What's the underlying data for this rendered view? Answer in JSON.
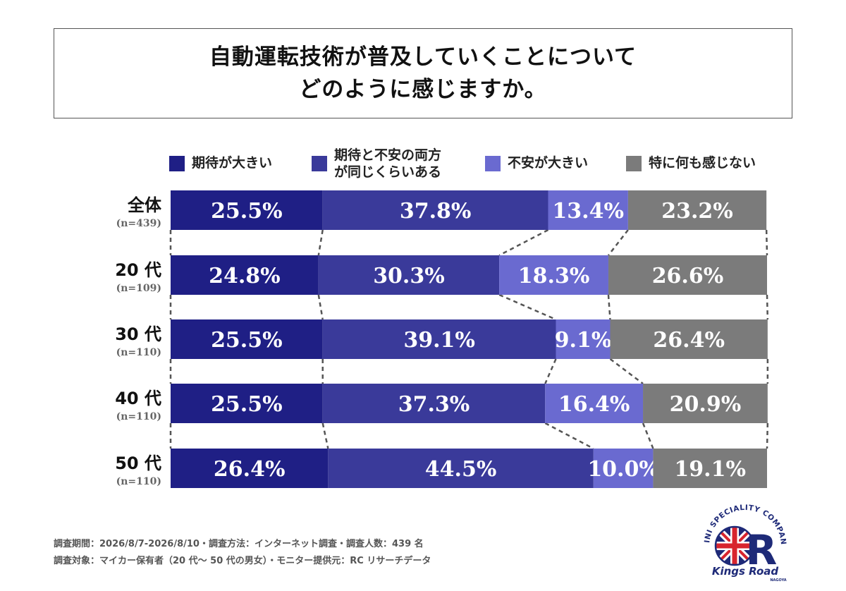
{
  "title": {
    "line1": "自動運転技術が普及していくことについて",
    "line2": "どのように感じますか。"
  },
  "legend": [
    {
      "label": "期待が大きい",
      "color": "#1f1f85"
    },
    {
      "label": "期待と不安の両方\nが同じくらいある",
      "color": "#3a3a9a"
    },
    {
      "label": "不安が大きい",
      "color": "#6a6ad0"
    },
    {
      "label": "特に何も感じない",
      "color": "#7b7b7b"
    }
  ],
  "chart_data": {
    "type": "bar",
    "orientation": "horizontal",
    "stacked": "100%",
    "categories": [
      "全体",
      "20代",
      "30代",
      "40代",
      "50代"
    ],
    "category_labels": [
      "全体",
      "20 代",
      "30 代",
      "40 代",
      "50 代"
    ],
    "sample_sizes": [
      "(n=439)",
      "(n=109)",
      "(n=110)",
      "(n=110)",
      "(n=110)"
    ],
    "series": [
      {
        "name": "期待が大きい",
        "values": [
          25.5,
          24.8,
          25.5,
          25.5,
          26.4
        ],
        "labels": [
          "25.5%",
          "24.8%",
          "25.5%",
          "25.5%",
          "26.4%"
        ]
      },
      {
        "name": "期待と不安の両方が同じくらいある",
        "values": [
          37.8,
          30.3,
          39.1,
          37.3,
          44.5
        ],
        "labels": [
          "37.8%",
          "30.3%",
          "39.1%",
          "37.3%",
          "44.5%"
        ]
      },
      {
        "name": "不安が大きい",
        "values": [
          13.4,
          18.3,
          9.1,
          16.4,
          10.0
        ],
        "labels": [
          "13.4%",
          "18.3%",
          "9.1%",
          "16.4%",
          "10.0%"
        ]
      },
      {
        "name": "特に何も感じない",
        "values": [
          23.2,
          26.6,
          26.4,
          20.9,
          19.1
        ],
        "labels": [
          "23.2%",
          "26.6%",
          "26.4%",
          "20.9%",
          "19.1%"
        ]
      }
    ],
    "connector_lines": "dashed",
    "legend_position": "top"
  },
  "footer": {
    "line1": "調査期間：2026/8/7-2026/8/10・調査方法：インターネット調査・調査人数：439 名",
    "line2": "調査対象：マイカー保有者（20 代〜 50 代の男女）・モニター提供元：RC リサーチデータ"
  },
  "logo": {
    "arc_text": "MINI SPECIALITY COMPANY",
    "brand": "Kings Road",
    "sub": "NAGOYA",
    "letter": "R",
    "colors": {
      "red": "#d8252e",
      "navy": "#1e2a78"
    }
  }
}
